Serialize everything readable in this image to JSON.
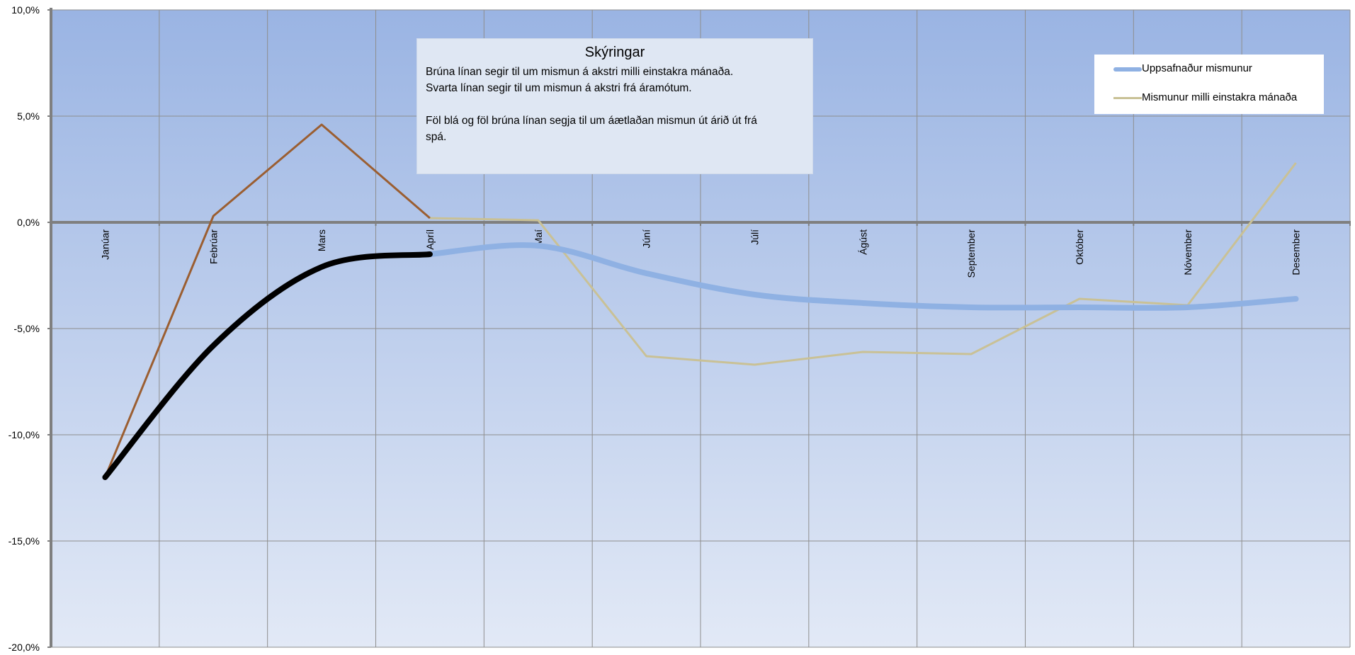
{
  "chart_data": {
    "type": "line",
    "categories": [
      "Janúar",
      "Febrúar",
      "Mars",
      "Apríl",
      "Maí",
      "Júní",
      "Júlí",
      "Ágúst",
      "September",
      "Október",
      "Nóvember",
      "Desember"
    ],
    "y_ticks": [
      "10,0%",
      "5,0%",
      "0,0%",
      "-5,0%",
      "-10,0%",
      "-15,0%",
      "-20,0%"
    ],
    "ylim": [
      -20,
      10
    ],
    "grid": true,
    "legend_position": "top-right",
    "series": [
      {
        "name": "Uppsafnaður mismunur",
        "color": "#8fb1e3",
        "values": [
          -12.0,
          -5.8,
          -2.1,
          -1.5,
          -1.1,
          -2.4,
          -3.4,
          -3.8,
          -4.0,
          -4.0,
          -4.0,
          -3.6
        ],
        "actual_until_index": 3,
        "actual_color": "#000000"
      },
      {
        "name": "Mismunur milli einstakra mánaða",
        "color": "#c9c196",
        "values": [
          -12.0,
          0.3,
          4.6,
          0.2,
          0.1,
          -6.3,
          -6.7,
          -6.1,
          -6.2,
          -3.6,
          -3.9,
          2.8
        ],
        "actual_until_index": 3,
        "actual_color": "#9b5e31"
      }
    ]
  },
  "notes": {
    "title": "Skýringar",
    "lines": [
      "Brúna línan segir til um mismun á akstri milli einstakra mánaða.",
      "Svarta línan segir til um mismun á akstri frá áramótum.",
      "",
      "Föl blá og föl brúna línan segja til um áætlaðan mismun út árið út frá",
      "spá."
    ]
  }
}
